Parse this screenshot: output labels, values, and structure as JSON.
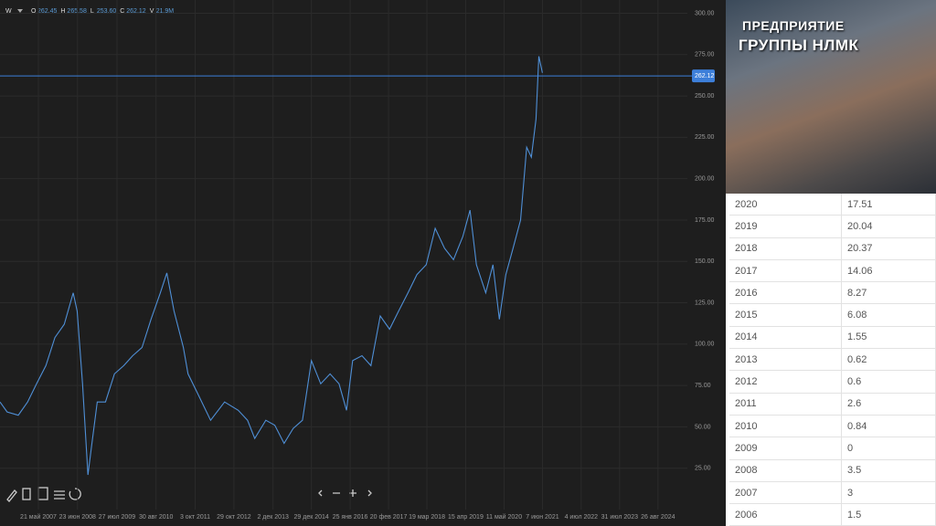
{
  "header": {
    "symbol": "W",
    "ohlc": [
      {
        "label": "O",
        "value": "262.45"
      },
      {
        "label": "H",
        "value": "265.58"
      },
      {
        "label": "L",
        "value": "253.60"
      },
      {
        "label": "C",
        "value": "262.12"
      },
      {
        "label": "V",
        "value": "21.9M"
      }
    ]
  },
  "chart_data": {
    "type": "line",
    "color": "#4f8fd6",
    "grid": true,
    "last_price": 262.12,
    "x": [
      2006.31,
      2006.51,
      2006.82,
      2007.08,
      2007.33,
      2007.59,
      2007.84,
      2008.1,
      2008.35,
      2008.46,
      2008.61,
      2008.76,
      2008.86,
      2009.02,
      2009.25,
      2009.5,
      2009.76,
      2010.01,
      2010.27,
      2010.52,
      2010.78,
      2010.96,
      2011.16,
      2011.42,
      2011.55,
      2011.8,
      2012.18,
      2012.57,
      2012.95,
      2013.21,
      2013.41,
      2013.72,
      2013.97,
      2014.23,
      2014.48,
      2014.74,
      2014.99,
      2015.25,
      2015.51,
      2015.76,
      2015.97,
      2016.14,
      2016.4,
      2016.65,
      2016.91,
      2017.17,
      2017.42,
      2017.68,
      2017.93,
      2018.19,
      2018.44,
      2018.7,
      2018.95,
      2019.21,
      2019.41,
      2019.59,
      2019.85,
      2020.05,
      2020.23,
      2020.41,
      2020.61,
      2020.82,
      2020.99,
      2021.12,
      2021.25,
      2021.33,
      2021.43
    ],
    "values": [
      65,
      59,
      57,
      65,
      76,
      87,
      104,
      112,
      131,
      120,
      76,
      21,
      38,
      65,
      65,
      82,
      87,
      93,
      98,
      115,
      131,
      143,
      120,
      98,
      82,
      71,
      54,
      65,
      60,
      54,
      43,
      54,
      51,
      40,
      49,
      54,
      90,
      76,
      82,
      76,
      60,
      90,
      93,
      87,
      117,
      109,
      120,
      131,
      142,
      148,
      170,
      158,
      151,
      165,
      181,
      148,
      131,
      148,
      115,
      142,
      158,
      175,
      219,
      213,
      236,
      274,
      264
    ],
    "xlim": [
      2006.31,
      2025.47
    ],
    "ylim": [
      0,
      308
    ],
    "xticks": [
      {
        "value": 2007.38,
        "label": "21 май 2007"
      },
      {
        "value": 2008.47,
        "label": "23 июн 2008"
      },
      {
        "value": 2009.57,
        "label": "27 июл 2009"
      },
      {
        "value": 2010.66,
        "label": "30 авг 2010"
      },
      {
        "value": 2011.75,
        "label": "3 окт 2011"
      },
      {
        "value": 2012.83,
        "label": "29 окт 2012"
      },
      {
        "value": 2013.92,
        "label": "2 дек 2013"
      },
      {
        "value": 2014.99,
        "label": "29 дек 2014"
      },
      {
        "value": 2016.07,
        "label": "25 янв 2016"
      },
      {
        "value": 2017.14,
        "label": "20 фев 2017"
      },
      {
        "value": 2018.21,
        "label": "19 мар 2018"
      },
      {
        "value": 2019.29,
        "label": "15 апр 2019"
      },
      {
        "value": 2020.36,
        "label": "11 май 2020"
      },
      {
        "value": 2021.43,
        "label": "7 июн 2021"
      },
      {
        "value": 2022.51,
        "label": "4 июл 2022"
      },
      {
        "value": 2023.58,
        "label": "31 июл 2023"
      },
      {
        "value": 2024.65,
        "label": "26 авг 2024"
      }
    ],
    "yticks": [
      {
        "value": 25,
        "label": "25.00"
      },
      {
        "value": 50,
        "label": "50.00"
      },
      {
        "value": 75,
        "label": "75.00"
      },
      {
        "value": 100,
        "label": "100.00"
      },
      {
        "value": 125,
        "label": "125.00"
      },
      {
        "value": 150,
        "label": "150.00"
      },
      {
        "value": 175,
        "label": "175.00"
      },
      {
        "value": 200,
        "label": "200.00"
      },
      {
        "value": 225,
        "label": "225.00"
      },
      {
        "value": 250,
        "label": "250.00"
      },
      {
        "value": 275,
        "label": "275.00"
      },
      {
        "value": 300,
        "label": "300.00"
      }
    ]
  },
  "image": {
    "line1": "ПРЕДПРИЯТИЕ",
    "line2": "ГРУППЫ НЛМК"
  },
  "table": {
    "rows": [
      [
        "2020",
        "17.51"
      ],
      [
        "2019",
        "20.04"
      ],
      [
        "2018",
        "20.37"
      ],
      [
        "2017",
        "14.06"
      ],
      [
        "2016",
        "8.27"
      ],
      [
        "2015",
        "6.08"
      ],
      [
        "2014",
        "1.55"
      ],
      [
        "2013",
        "0.62"
      ],
      [
        "2012",
        "0.6"
      ],
      [
        "2011",
        "2.6"
      ],
      [
        "2010",
        "0.84"
      ],
      [
        "2009",
        "0"
      ],
      [
        "2008",
        "3.5"
      ],
      [
        "2007",
        "3"
      ],
      [
        "2006",
        "1.5"
      ]
    ]
  }
}
